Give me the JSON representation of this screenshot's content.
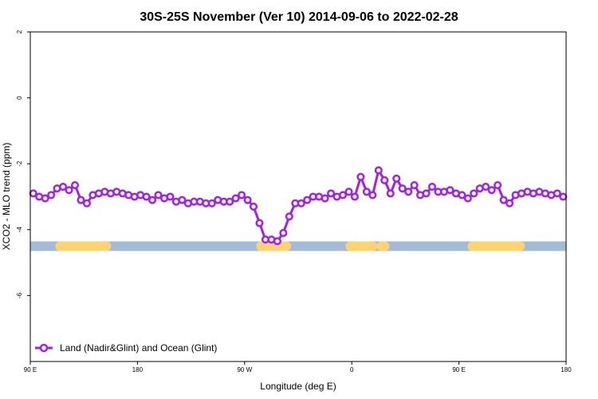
{
  "chart_data": {
    "type": "line",
    "title": "30S-25S November (Ver 10)   2014-09-06 to 2022-02-28",
    "xlabel": "Longitude (deg E)",
    "ylabel": "XCO2 - MLO trend (ppm)",
    "xlim": [
      90,
      450
    ],
    "ylim": [
      -8,
      2
    ],
    "x_ticks": [
      {
        "value": 90,
        "label": "90 E"
      },
      {
        "value": 162,
        "label": "180"
      },
      {
        "value": 234,
        "label": "90 W"
      },
      {
        "value": 306,
        "label": "0"
      },
      {
        "value": 378,
        "label": "90 E"
      },
      {
        "value": 450,
        "label": "180"
      }
    ],
    "y_ticks": [
      {
        "value": 2,
        "label": "2"
      },
      {
        "value": 0,
        "label": "0"
      },
      {
        "value": -2,
        "label": "-2"
      },
      {
        "value": -4,
        "label": "-4"
      },
      {
        "value": -6,
        "label": "-6"
      }
    ],
    "series": [
      {
        "name": "Land (Nadir&Glint) and Ocean (Glint)",
        "color": "#a020f0",
        "x": [
          92,
          96,
          100,
          104,
          108,
          112,
          116,
          120,
          124,
          128,
          132,
          136,
          140,
          144,
          148,
          152,
          156,
          160,
          164,
          168,
          172,
          176,
          180,
          184,
          188,
          192,
          196,
          200,
          204,
          208,
          212,
          216,
          220,
          224,
          228,
          232,
          236,
          240,
          244,
          248,
          252,
          256,
          260,
          264,
          268,
          272,
          276,
          280,
          284,
          288,
          292,
          296,
          300,
          304,
          308,
          312,
          316,
          320,
          324,
          328,
          332,
          336,
          340,
          344,
          348,
          352,
          356,
          360,
          364,
          368,
          372,
          376,
          380,
          384,
          388,
          392,
          396,
          400,
          404,
          408,
          412,
          416,
          420,
          424,
          428,
          432,
          436,
          440,
          444,
          448
        ],
        "y": [
          -2.9,
          -3.0,
          -3.05,
          -2.95,
          -2.75,
          -2.7,
          -2.8,
          -2.65,
          -3.1,
          -3.2,
          -2.95,
          -2.9,
          -2.85,
          -2.9,
          -2.85,
          -2.9,
          -2.95,
          -3.0,
          -2.95,
          -3.0,
          -3.1,
          -2.95,
          -3.05,
          -3.0,
          -3.15,
          -3.1,
          -3.2,
          -3.15,
          -3.15,
          -3.2,
          -3.2,
          -3.1,
          -3.15,
          -3.15,
          -3.05,
          -2.95,
          -3.1,
          -3.3,
          -3.8,
          -4.3,
          -4.3,
          -4.35,
          -4.1,
          -3.6,
          -3.2,
          -3.2,
          -3.1,
          -3.0,
          -3.0,
          -3.05,
          -2.9,
          -3.0,
          -2.95,
          -2.85,
          -3.0,
          -2.4,
          -2.85,
          -2.95,
          -2.2,
          -2.5,
          -2.9,
          -2.45,
          -2.75,
          -2.85,
          -2.65,
          -2.95,
          -2.9,
          -2.7,
          -2.85,
          -2.85,
          -2.8,
          -2.9,
          -2.95,
          -3.05,
          -2.9,
          -2.75,
          -2.7,
          -2.8,
          -2.65,
          -3.1,
          -3.2,
          -2.95,
          -2.9,
          -2.85,
          -2.9,
          -2.85,
          -2.9,
          -2.95,
          -2.9,
          -3.0
        ]
      }
    ],
    "surface_bar": {
      "y": -4.5,
      "ocean_color": "#a4bbd7",
      "land_color": "#ffd36e",
      "land_segments": [
        [
          110,
          141
        ],
        [
          245,
          262
        ],
        [
          305,
          320
        ],
        [
          326,
          328
        ],
        [
          387,
          419
        ]
      ]
    },
    "legend": {
      "placement": "bottom-left"
    },
    "grid": false
  }
}
